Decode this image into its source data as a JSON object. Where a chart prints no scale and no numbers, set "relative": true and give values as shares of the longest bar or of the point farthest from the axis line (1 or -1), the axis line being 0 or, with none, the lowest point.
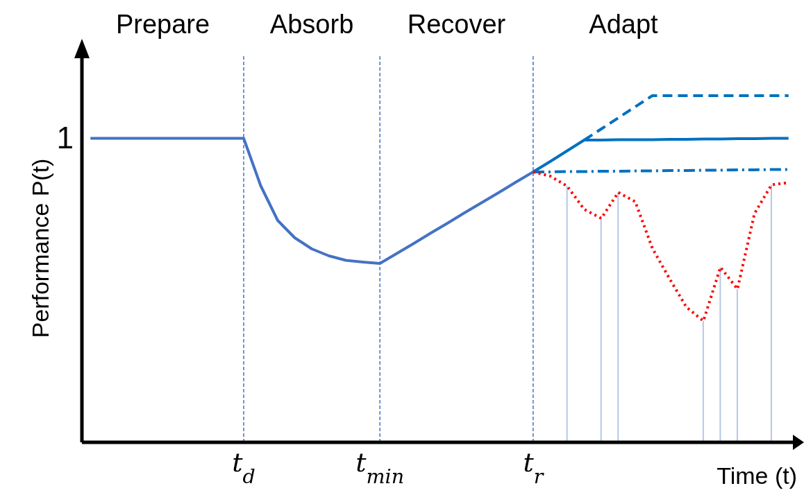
{
  "chart_data": {
    "type": "line",
    "relative": true,
    "xlabel": "Time (t)",
    "ylabel": "Performance P(t)",
    "categories": [
      null,
      null,
      null,
      null,
      null,
      null,
      null,
      null,
      null,
      "t$_{d}$",
      null,
      null,
      null,
      null,
      null,
      null,
      null,
      "t$_{min}$",
      null,
      null,
      null,
      null,
      null,
      null,
      null,
      null,
      "t$_{r}$",
      null,
      null,
      null,
      null,
      null,
      null,
      null,
      null,
      null,
      null,
      null,
      null,
      null,
      null,
      null
    ],
    "marker": "none",
    "annotations": [
      "Prepare",
      "Absorb",
      "Recover",
      "Adapt",
      "1"
    ],
    "ref_lines": [
      {
        "axis": "x",
        "value": "t$_{d}$",
        "color": "#4472c4",
        "line_style": "dashed"
      },
      {
        "axis": "x",
        "value": "t$_{min}$",
        "color": "#4472c4",
        "line_style": "dashed"
      },
      {
        "axis": "x",
        "value": "t$_{r}$",
        "color": "#4472c4",
        "line_style": "dashed"
      }
    ],
    "series": [
      {
        "color": "#4472c4",
        "values": [
          0.877,
          0.877,
          0.877,
          0.877,
          0.877,
          0.877,
          0.877,
          0.877,
          0.877,
          0.877,
          0.74,
          0.64,
          0.59,
          0.558,
          0.538,
          0.525,
          0.52,
          0.516,
          0.545,
          0.574,
          0.604,
          0.633,
          0.663,
          0.692,
          0.721,
          0.751,
          0.78,
          null,
          null,
          null,
          null,
          null,
          null,
          null,
          null,
          null,
          null,
          null,
          null,
          null,
          null,
          null
        ]
      },
      {
        "color": "#0070c0",
        "values": [
          null,
          null,
          null,
          null,
          null,
          null,
          null,
          null,
          null,
          null,
          null,
          null,
          null,
          null,
          null,
          null,
          null,
          null,
          null,
          null,
          null,
          null,
          null,
          null,
          null,
          null,
          0.78,
          0.81,
          0.841,
          0.872,
          0.872,
          0.873,
          0.873,
          0.873,
          0.874,
          0.874,
          0.875,
          0.875,
          0.876,
          0.876,
          0.877,
          0.877
        ]
      },
      {
        "color": "#0070c0",
        "line_style": "dashed",
        "values": [
          null,
          null,
          null,
          null,
          null,
          null,
          null,
          null,
          null,
          null,
          null,
          null,
          null,
          null,
          null,
          null,
          null,
          null,
          null,
          null,
          null,
          null,
          null,
          null,
          null,
          null,
          null,
          null,
          null,
          0.872,
          0.904,
          0.936,
          0.968,
          1,
          1,
          1,
          1,
          1,
          1,
          1,
          1,
          1
        ]
      },
      {
        "color": "#0070c0",
        "line_style": "dashdot",
        "values": [
          null,
          null,
          null,
          null,
          null,
          null,
          null,
          null,
          null,
          null,
          null,
          null,
          null,
          null,
          null,
          null,
          null,
          null,
          null,
          null,
          null,
          null,
          null,
          null,
          null,
          null,
          0.78,
          0.78,
          0.781,
          0.781,
          0.782,
          0.782,
          0.783,
          0.783,
          0.784,
          0.784,
          0.785,
          0.785,
          0.786,
          0.786,
          0.787,
          0.787
        ]
      },
      {
        "color": "#ff0000",
        "line_style": "dotted",
        "values": [
          null,
          null,
          null,
          null,
          null,
          null,
          null,
          null,
          null,
          null,
          null,
          null,
          null,
          null,
          null,
          null,
          null,
          null,
          null,
          null,
          null,
          null,
          null,
          null,
          null,
          null,
          0.78,
          0.768,
          0.739,
          0.672,
          0.646,
          0.721,
          0.694,
          0.56,
          0.473,
          0.39,
          0.35,
          0.505,
          0.442,
          0.66,
          0.743,
          0.749
        ]
      },
      {
        "type": "bar",
        "color": "#b4c7e7",
        "values": [
          null,
          null,
          null,
          null,
          null,
          null,
          null,
          null,
          null,
          null,
          null,
          null,
          null,
          null,
          null,
          null,
          null,
          null,
          null,
          null,
          null,
          null,
          null,
          null,
          null,
          null,
          null,
          null,
          0.739,
          null,
          0.646,
          0.721,
          null,
          null,
          null,
          null,
          0.35,
          0.505,
          0.442,
          null,
          0.743,
          null
        ]
      }
    ]
  }
}
